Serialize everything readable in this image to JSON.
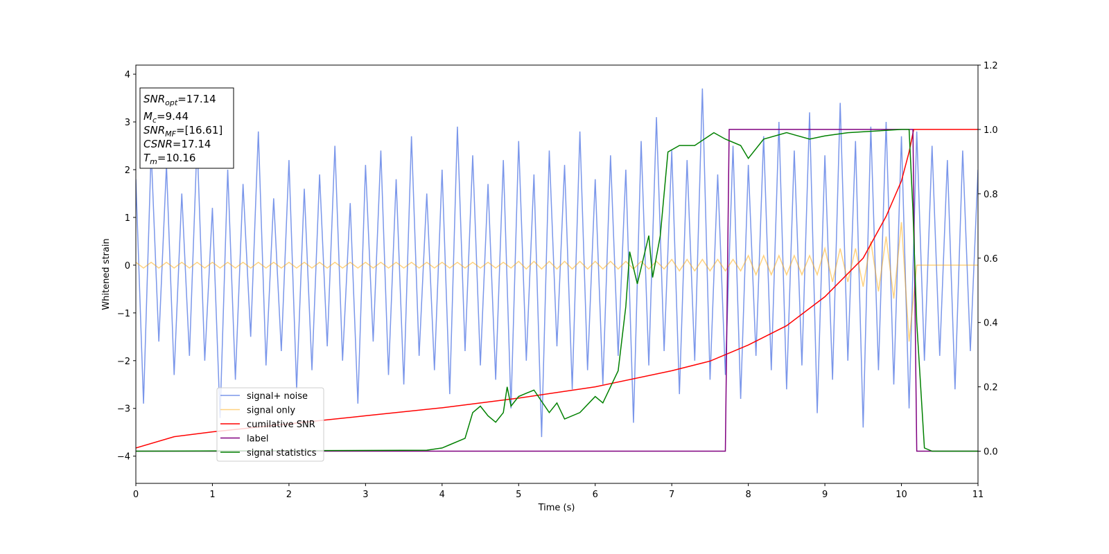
{
  "chart_data": {
    "type": "line",
    "xlabel": "Time (s)",
    "ylabel": "Whitened strain",
    "xlim": [
      0,
      11
    ],
    "xticks": [
      0,
      1,
      2,
      3,
      4,
      5,
      6,
      7,
      8,
      9,
      10,
      11
    ],
    "ylim": [
      -4.57,
      4.19
    ],
    "yticks": [
      {
        "value": -4,
        "label": "−4"
      },
      {
        "value": -3,
        "label": "−3"
      },
      {
        "value": -2,
        "label": "−2"
      },
      {
        "value": -1,
        "label": "−1"
      },
      0,
      1,
      2,
      3,
      4
    ],
    "y2lim": [
      -0.1,
      1.2
    ],
    "y2ticks": [
      {
        "value": 0,
        "label": "0.0"
      },
      {
        "value": 0.2,
        "label": "0.2"
      },
      {
        "value": 0.4,
        "label": "0.4"
      },
      {
        "value": 0.6,
        "label": "0.6"
      },
      {
        "value": 0.8,
        "label": "0.8"
      },
      {
        "value": 1,
        "label": "1.0"
      },
      {
        "value": 1.2,
        "label": "1.2"
      }
    ],
    "legend": "lower left",
    "x": [
      0,
      0.1,
      0.2,
      0.3,
      0.4,
      0.5,
      0.6,
      0.7,
      0.8,
      0.9,
      1,
      1.1,
      1.2,
      1.3,
      1.4,
      1.5,
      1.6,
      1.7,
      1.8,
      1.9,
      2,
      2.1,
      2.2,
      2.3,
      2.4,
      2.5,
      2.6,
      2.7,
      2.8,
      2.9,
      3,
      3.1,
      3.2,
      3.3,
      3.4,
      3.5,
      3.6,
      3.7,
      3.8,
      3.9,
      4,
      4.1,
      4.2,
      4.3,
      4.4,
      4.5,
      4.6,
      4.7,
      4.8,
      4.9,
      5,
      5.1,
      5.2,
      5.3,
      5.4,
      5.5,
      5.6,
      5.7,
      5.8,
      5.9,
      6,
      6.1,
      6.2,
      6.3,
      6.4,
      6.5,
      6.6,
      6.7,
      6.8,
      6.9,
      7,
      7.1,
      7.2,
      7.3,
      7.4,
      7.5,
      7.6,
      7.7,
      7.8,
      7.9,
      8,
      8.1,
      8.2,
      8.3,
      8.4,
      8.5,
      8.6,
      8.7,
      8.8,
      8.9,
      9,
      9.1,
      9.2,
      9.3,
      9.4,
      9.5,
      9.6,
      9.7,
      9.8,
      9.9,
      10,
      10.1,
      10.2,
      10.3,
      10.4,
      10.5,
      10.6,
      10.7,
      10.8,
      10.9,
      11
    ],
    "series": [
      {
        "name": "signal+ noise",
        "color": "#4169e1",
        "opacity": 0.7,
        "values": [
          1.8,
          -2.9,
          2.4,
          -1.6,
          2.1,
          -2.3,
          1.5,
          -1.9,
          2.6,
          -2.0,
          1.2,
          -3.2,
          2.0,
          -2.4,
          1.7,
          -1.5,
          2.8,
          -2.1,
          1.4,
          -1.8,
          2.2,
          -2.6,
          1.6,
          -2.2,
          1.9,
          -1.7,
          2.5,
          -2.0,
          1.3,
          -2.9,
          2.1,
          -1.6,
          2.4,
          -2.3,
          1.8,
          -2.5,
          2.7,
          -1.9,
          1.5,
          -2.2,
          2.0,
          -2.7,
          2.9,
          -1.8,
          2.3,
          -2.1,
          1.7,
          -2.4,
          2.2,
          -3.0,
          2.6,
          -2.0,
          1.9,
          -3.6,
          2.4,
          -1.7,
          2.1,
          -2.6,
          2.8,
          -2.2,
          1.8,
          -2.5,
          2.3,
          -1.9,
          2.0,
          -3.3,
          2.6,
          -2.1,
          3.1,
          -1.8,
          2.4,
          -2.7,
          2.2,
          -2.0,
          3.7,
          -2.4,
          1.9,
          -2.3,
          2.5,
          -2.8,
          2.1,
          -1.9,
          2.7,
          -2.2,
          3.0,
          -2.6,
          2.4,
          -2.1,
          3.2,
          -3.1,
          2.3,
          -2.4,
          3.4,
          -2.0,
          2.6,
          -3.4,
          2.9,
          -2.2,
          3.0,
          -2.5,
          2.7,
          -3.0,
          2.8,
          -2.0,
          2.5,
          -1.9,
          2.2,
          -2.6,
          2.4,
          -1.8,
          2.0
        ]
      },
      {
        "name": "signal only",
        "color": "#ffa500",
        "opacity": 0.5,
        "values": [
          0.06,
          -0.06,
          0.06,
          -0.06,
          0.06,
          -0.06,
          0.06,
          -0.06,
          0.06,
          -0.06,
          0.06,
          -0.06,
          0.06,
          -0.06,
          0.06,
          -0.06,
          0.06,
          -0.06,
          0.06,
          -0.06,
          0.06,
          -0.06,
          0.06,
          -0.06,
          0.06,
          -0.06,
          0.06,
          -0.06,
          0.06,
          -0.06,
          0.06,
          -0.06,
          0.06,
          -0.06,
          0.06,
          -0.06,
          0.06,
          -0.06,
          0.06,
          -0.06,
          0.06,
          -0.06,
          0.06,
          -0.06,
          0.06,
          -0.06,
          0.06,
          -0.06,
          0.06,
          -0.06,
          0.08,
          -0.08,
          0.08,
          -0.08,
          0.08,
          -0.08,
          0.08,
          -0.08,
          0.08,
          -0.08,
          0.08,
          -0.08,
          0.08,
          -0.08,
          0.08,
          -0.08,
          0.08,
          -0.08,
          0.08,
          -0.08,
          0.12,
          -0.12,
          0.12,
          -0.12,
          0.12,
          -0.12,
          0.12,
          -0.12,
          0.12,
          -0.12,
          0.2,
          -0.2,
          0.2,
          -0.2,
          0.2,
          -0.2,
          0.2,
          -0.2,
          0.2,
          -0.2,
          0.35,
          -0.35,
          0.35,
          -0.35,
          0.35,
          -0.45,
          0.5,
          -0.55,
          0.6,
          -0.7,
          0.9,
          -1.6,
          0,
          0,
          0,
          0,
          0,
          0,
          0,
          0,
          0
        ]
      },
      {
        "name": "cumilative SNR",
        "color": "#ff0000",
        "axis": "y2",
        "x": [
          0,
          0.5,
          1,
          2,
          3,
          4,
          5,
          6,
          7,
          7.5,
          8,
          8.5,
          9,
          9.5,
          9.8,
          10,
          10.1,
          10.16,
          11
        ],
        "values": [
          0.01,
          0.045,
          0.06,
          0.085,
          0.11,
          0.135,
          0.165,
          0.2,
          0.25,
          0.28,
          0.33,
          0.39,
          0.48,
          0.6,
          0.73,
          0.84,
          0.93,
          1.0,
          1.0
        ]
      },
      {
        "name": "label",
        "color": "#800080",
        "axis": "y2",
        "x": [
          0,
          7.7,
          7.75,
          10.15,
          10.2,
          11
        ],
        "values": [
          0,
          0,
          1,
          1,
          0,
          0
        ]
      },
      {
        "name": "signal statistics",
        "color": "#008000",
        "axis": "y2",
        "x": [
          0,
          3.8,
          4,
          4.1,
          4.3,
          4.4,
          4.5,
          4.6,
          4.7,
          4.8,
          4.85,
          4.9,
          5.0,
          5.2,
          5.4,
          5.5,
          5.6,
          5.8,
          6.0,
          6.1,
          6.3,
          6.4,
          6.45,
          6.55,
          6.7,
          6.75,
          6.85,
          6.95,
          7.1,
          7.3,
          7.55,
          7.7,
          7.9,
          8.0,
          8.2,
          8.5,
          8.8,
          9.0,
          9.3,
          10.0,
          10.1,
          10.15,
          10.2,
          10.3,
          10.4,
          11
        ],
        "values": [
          0,
          0.003,
          0.01,
          0.02,
          0.04,
          0.12,
          0.14,
          0.11,
          0.09,
          0.12,
          0.2,
          0.14,
          0.17,
          0.19,
          0.12,
          0.15,
          0.1,
          0.12,
          0.17,
          0.15,
          0.25,
          0.45,
          0.62,
          0.52,
          0.67,
          0.54,
          0.67,
          0.93,
          0.95,
          0.95,
          0.99,
          0.97,
          0.95,
          0.91,
          0.97,
          0.99,
          0.97,
          0.98,
          0.99,
          1.0,
          1.0,
          0.75,
          0.4,
          0.01,
          0.0,
          0
        ]
      }
    ],
    "annotations": [
      {
        "name": "SNR",
        "sub": "opt",
        "rest": "=17.14"
      },
      {
        "name": "M",
        "sub": "c",
        "rest": "=9.44"
      },
      {
        "name": "SNR",
        "sub": "MF",
        "rest": "=[16.61]"
      },
      {
        "name": "CSNR",
        "rest": "=17.14"
      },
      {
        "name": "T",
        "sub": "m",
        "rest": "=10.16"
      }
    ]
  }
}
